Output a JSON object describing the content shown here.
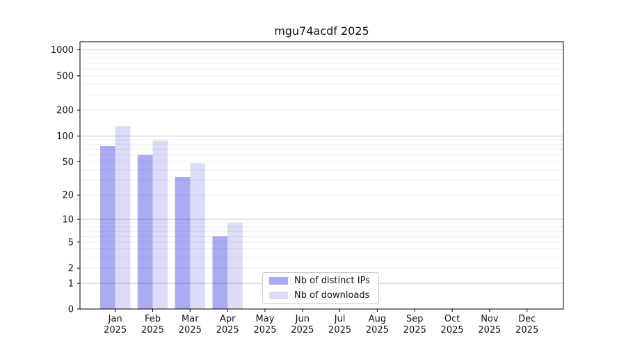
{
  "chart_data": {
    "type": "bar",
    "title": "mgu74acdf 2025",
    "categories": [
      "Jan",
      "Feb",
      "Mar",
      "Apr",
      "May",
      "Jun",
      "Jul",
      "Aug",
      "Sep",
      "Oct",
      "Nov",
      "Dec"
    ],
    "year_label": "2025",
    "series": [
      {
        "name": "Nb of distinct IPs",
        "fill": "rgba(28,28,220,0.37)",
        "solid_hex": "#a8a8f0",
        "values": [
          76,
          60,
          33,
          6,
          0,
          0,
          0,
          0,
          0,
          0,
          0,
          0
        ]
      },
      {
        "name": "Nb of downloads",
        "fill": "rgba(22,22,215,0.15)",
        "solid_hex": "#dcdcf8",
        "values": [
          130,
          88,
          48,
          9,
          0,
          0,
          0,
          0,
          0,
          0,
          0,
          0
        ]
      }
    ],
    "yscale": "log1p",
    "ylim": [
      0,
      1240
    ],
    "yticks": [
      0,
      1,
      2,
      5,
      10,
      20,
      50,
      100,
      200,
      500,
      1000
    ],
    "yticks_minor": [
      3,
      4,
      6,
      7,
      8,
      9,
      30,
      40,
      60,
      70,
      80,
      90,
      300,
      400,
      600,
      700,
      800,
      900
    ],
    "decade_ticks": [
      1,
      10,
      100,
      1000
    ],
    "grid": {
      "show": true,
      "major_color": "#c9c9c9",
      "minor_color": "#ededed"
    },
    "axis_color": "#000000",
    "text_color": "#111111",
    "legend_position": "inside-bottom-center",
    "xlabel": "",
    "ylabel": ""
  }
}
